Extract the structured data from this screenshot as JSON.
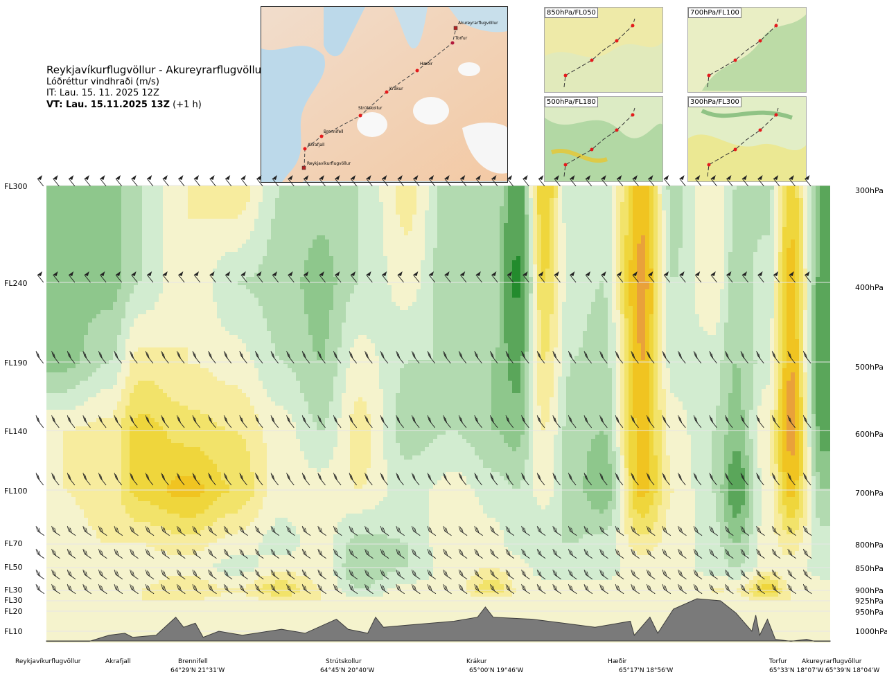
{
  "header": {
    "route": "Reykjavíkurflugvöllur - Akureyrarflugvöllur",
    "parameter": "Lóðréttur vindhraði (m/s)",
    "issue_time": "IT: Lau. 15. 11. 2025 12Z",
    "valid_prefix": "VT: Lau. 15.11.2025 13Z",
    "valid_suffix": "(+1 h)"
  },
  "route_map": {
    "points": [
      "Akureyrarflugvöllur",
      "Torfur",
      "Hæðir",
      "Krákur",
      "Strútskollur",
      "Brennifell",
      "Akrafjall",
      "Reykjavíkurflugvöllur"
    ]
  },
  "level_maps": [
    {
      "label": "850hPa/FL050"
    },
    {
      "label": "700hPa/FL100"
    },
    {
      "label": "500hPa/FL180"
    },
    {
      "label": "300hPa/FL300"
    }
  ],
  "chart_data": {
    "type": "heatmap",
    "title": "",
    "levels": [
      {
        "fl": "FL300",
        "hpa": "300hPa"
      },
      {
        "fl": "FL240",
        "hpa": "400hPa"
      },
      {
        "fl": "FL190",
        "hpa": "500hPa"
      },
      {
        "fl": "FL140",
        "hpa": "600hPa"
      },
      {
        "fl": "FL100",
        "hpa": "700hPa"
      },
      {
        "fl": "FL70",
        "hpa": "800hPa"
      },
      {
        "fl": "FL50",
        "hpa": "850hPa"
      },
      {
        "fl": "FL30",
        "hpa": "900hPa"
      },
      {
        "fl": "FL30",
        "hpa": "925hPa"
      },
      {
        "fl": "FL20",
        "hpa": "950hPa"
      },
      {
        "fl": "FL10",
        "hpa": "1000hPa"
      }
    ],
    "route_points": [
      {
        "name": "Reykjavíkurflugvöllur",
        "coord": ""
      },
      {
        "name": "Akrafjall",
        "coord": ""
      },
      {
        "name": "Brennifell",
        "coord": "64°29'N 21°31'W"
      },
      {
        "name": "Strútskollur",
        "coord": "64°45'N 20°40'W"
      },
      {
        "name": "Krákur",
        "coord": "65°00'N 19°46'W"
      },
      {
        "name": "Hæðir",
        "coord": "65°17'N 18°56'W"
      },
      {
        "name": "Torfur",
        "coord": "65°33'N 18°07'W"
      },
      {
        "name": "Akureyrarflugvöllur",
        "coord": "65°39'N 18°04'W"
      }
    ],
    "columns": [
      {
        "pos": 0.02,
        "vals": [
          -0.25,
          -0.25,
          -0.25,
          0.1,
          0.1,
          0.05,
          0.05,
          0.05,
          0.05
        ]
      },
      {
        "pos": 0.08,
        "vals": [
          -0.25,
          -0.25,
          -0.1,
          0.15,
          0.15,
          0.1,
          0.05,
          0.1,
          0.1
        ]
      },
      {
        "pos": 0.12,
        "vals": [
          -0.1,
          -0.1,
          0.15,
          0.35,
          0.35,
          0.1,
          0.05,
          0.1,
          0.1
        ]
      },
      {
        "pos": 0.18,
        "vals": [
          0.1,
          0.1,
          0.1,
          0.25,
          0.45,
          0.15,
          0.05,
          0.2,
          0.1
        ]
      },
      {
        "pos": 0.24,
        "vals": [
          0.2,
          -0.1,
          0.05,
          0.2,
          0.3,
          0.05,
          -0.05,
          0.1,
          0.05
        ]
      },
      {
        "pos": 0.3,
        "vals": [
          -0.1,
          -0.15,
          -0.1,
          0.05,
          0.05,
          -0.05,
          0.05,
          0.3,
          0.1
        ]
      },
      {
        "pos": 0.35,
        "vals": [
          -0.15,
          -0.25,
          -0.2,
          -0.1,
          0.05,
          0.05,
          0.05,
          0.1,
          0.1
        ]
      },
      {
        "pos": 0.4,
        "vals": [
          -0.1,
          -0.1,
          0.05,
          0.15,
          0.1,
          -0.15,
          -0.2,
          -0.1,
          0.05
        ]
      },
      {
        "pos": 0.46,
        "vals": [
          0.15,
          0.05,
          -0.1,
          -0.15,
          -0.05,
          -0.1,
          -0.1,
          0.05,
          0.05
        ]
      },
      {
        "pos": 0.52,
        "vals": [
          -0.2,
          -0.2,
          -0.1,
          -0.1,
          0.05,
          0.1,
          0.05,
          0.05,
          0.05
        ]
      },
      {
        "pos": 0.57,
        "vals": [
          -0.1,
          -0.1,
          -0.2,
          -0.2,
          -0.05,
          0.05,
          0.1,
          0.3,
          0.05
        ]
      },
      {
        "pos": 0.6,
        "vals": [
          -0.4,
          -0.55,
          -0.35,
          -0.25,
          -0.1,
          -0.05,
          0.05,
          0.1,
          0.05
        ]
      },
      {
        "pos": 0.635,
        "vals": [
          0.4,
          0.3,
          0.2,
          0.1,
          0.05,
          -0.1,
          -0.05,
          0.05,
          0.05
        ]
      },
      {
        "pos": 0.67,
        "vals": [
          -0.1,
          -0.05,
          -0.1,
          -0.15,
          -0.15,
          -0.1,
          -0.05,
          0.05,
          0.05
        ]
      },
      {
        "pos": 0.71,
        "vals": [
          -0.05,
          -0.1,
          -0.15,
          -0.2,
          -0.3,
          -0.05,
          -0.05,
          0.05,
          0.05
        ]
      },
      {
        "pos": 0.76,
        "vals": [
          0.45,
          0.55,
          0.5,
          0.45,
          0.45,
          0.15,
          0.05,
          0.05,
          0.05
        ]
      },
      {
        "pos": 0.8,
        "vals": [
          -0.15,
          -0.1,
          -0.05,
          0.05,
          0.1,
          0.05,
          0.05,
          0.05,
          0.05
        ]
      },
      {
        "pos": 0.85,
        "vals": [
          0.1,
          0.1,
          -0.05,
          -0.1,
          -0.1,
          -0.05,
          -0.05,
          0.1,
          0.05
        ]
      },
      {
        "pos": 0.88,
        "vals": [
          -0.1,
          -0.15,
          -0.2,
          -0.25,
          -0.4,
          -0.2,
          -0.1,
          0.1,
          0.05
        ]
      },
      {
        "pos": 0.92,
        "vals": [
          -0.15,
          -0.05,
          -0.05,
          0.1,
          0.05,
          0.05,
          0.05,
          0.4,
          0.1
        ]
      },
      {
        "pos": 0.95,
        "vals": [
          0.35,
          0.45,
          0.5,
          0.55,
          0.45,
          0.15,
          0.05,
          0.1,
          0.1
        ]
      },
      {
        "pos": 0.99,
        "vals": [
          -0.3,
          -0.35,
          -0.45,
          -0.35,
          -0.2,
          -0.05,
          -0.05,
          0.05,
          0.05
        ]
      }
    ],
    "terrain": [
      {
        "pos": 0.0,
        "fl": 5
      },
      {
        "pos": 0.055,
        "fl": 5
      },
      {
        "pos": 0.08,
        "fl": 8
      },
      {
        "pos": 0.1,
        "fl": 9
      },
      {
        "pos": 0.11,
        "fl": 7
      },
      {
        "pos": 0.14,
        "fl": 8
      },
      {
        "pos": 0.165,
        "fl": 17
      },
      {
        "pos": 0.175,
        "fl": 12
      },
      {
        "pos": 0.19,
        "fl": 14
      },
      {
        "pos": 0.2,
        "fl": 7
      },
      {
        "pos": 0.22,
        "fl": 10
      },
      {
        "pos": 0.25,
        "fl": 8
      },
      {
        "pos": 0.3,
        "fl": 11
      },
      {
        "pos": 0.33,
        "fl": 9
      },
      {
        "pos": 0.37,
        "fl": 16
      },
      {
        "pos": 0.385,
        "fl": 11
      },
      {
        "pos": 0.41,
        "fl": 9
      },
      {
        "pos": 0.42,
        "fl": 17
      },
      {
        "pos": 0.43,
        "fl": 12
      },
      {
        "pos": 0.46,
        "fl": 13
      },
      {
        "pos": 0.52,
        "fl": 15
      },
      {
        "pos": 0.55,
        "fl": 17
      },
      {
        "pos": 0.56,
        "fl": 22
      },
      {
        "pos": 0.57,
        "fl": 17
      },
      {
        "pos": 0.62,
        "fl": 16
      },
      {
        "pos": 0.66,
        "fl": 14
      },
      {
        "pos": 0.7,
        "fl": 12
      },
      {
        "pos": 0.745,
        "fl": 15
      },
      {
        "pos": 0.75,
        "fl": 8
      },
      {
        "pos": 0.77,
        "fl": 17
      },
      {
        "pos": 0.78,
        "fl": 9
      },
      {
        "pos": 0.8,
        "fl": 21
      },
      {
        "pos": 0.83,
        "fl": 26
      },
      {
        "pos": 0.86,
        "fl": 25
      },
      {
        "pos": 0.88,
        "fl": 19
      },
      {
        "pos": 0.9,
        "fl": 10
      },
      {
        "pos": 0.905,
        "fl": 18
      },
      {
        "pos": 0.91,
        "fl": 8
      },
      {
        "pos": 0.92,
        "fl": 16
      },
      {
        "pos": 0.93,
        "fl": 6
      },
      {
        "pos": 0.95,
        "fl": 5
      },
      {
        "pos": 0.97,
        "fl": 6
      },
      {
        "pos": 0.98,
        "fl": 5
      },
      {
        "pos": 1.0,
        "fl": 5
      }
    ],
    "color_scale": [
      {
        "max": -0.5,
        "color": "#238b2d"
      },
      {
        "max": -0.3,
        "color": "#5aa65a"
      },
      {
        "max": -0.2,
        "color": "#8ec78c"
      },
      {
        "max": -0.1,
        "color": "#b2dab0"
      },
      {
        "max": 0.0,
        "color": "#d2ecd0"
      },
      {
        "max": 0.1,
        "color": "#f5f3cd"
      },
      {
        "max": 0.2,
        "color": "#f7ec9e"
      },
      {
        "max": 0.3,
        "color": "#f2e36a"
      },
      {
        "max": 0.4,
        "color": "#efd63c"
      },
      {
        "max": 0.5,
        "color": "#f0c421"
      },
      {
        "max": 9.0,
        "color": "#e9a13a"
      }
    ],
    "colors": {
      "terrain": "#7a7a7a",
      "terrain_edge": "#3c3c3c",
      "grid": "#e6e6e6",
      "barb": "#222222"
    }
  }
}
